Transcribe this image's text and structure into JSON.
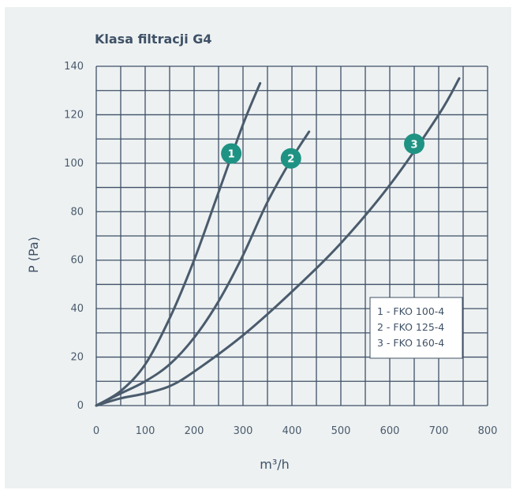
{
  "chart_data": {
    "type": "line",
    "title": "Klasa filtracji G4",
    "xlabel": "m³/h",
    "ylabel": "P (Pa)",
    "xlim": [
      0,
      800
    ],
    "ylim": [
      0,
      140
    ],
    "x_ticks": [
      "0",
      "100",
      "200",
      "300",
      "400",
      "500",
      "600",
      "700",
      "800"
    ],
    "y_ticks": [
      "0",
      "20",
      "40",
      "60",
      "80",
      "100",
      "120",
      "140"
    ],
    "grid": true,
    "colors": {
      "line": "#4a5b6c",
      "grid": "#3f5166",
      "marker": "#1f9383"
    },
    "series": [
      {
        "marker_label": "1",
        "marker_at": [
          276,
          104
        ],
        "points": [
          [
            0,
            0
          ],
          [
            50,
            6
          ],
          [
            100,
            17
          ],
          [
            150,
            36
          ],
          [
            200,
            60
          ],
          [
            250,
            88
          ],
          [
            300,
            116
          ],
          [
            335,
            133
          ]
        ]
      },
      {
        "marker_label": "2",
        "marker_at": [
          398,
          102
        ],
        "points": [
          [
            0,
            0
          ],
          [
            50,
            5
          ],
          [
            100,
            10
          ],
          [
            150,
            17
          ],
          [
            200,
            28
          ],
          [
            250,
            43
          ],
          [
            300,
            62
          ],
          [
            350,
            84
          ],
          [
            400,
            102
          ],
          [
            435,
            113
          ]
        ]
      },
      {
        "marker_label": "3",
        "marker_at": [
          650,
          108
        ],
        "points": [
          [
            0,
            0
          ],
          [
            50,
            3
          ],
          [
            100,
            5
          ],
          [
            150,
            8
          ],
          [
            200,
            14
          ],
          [
            300,
            29
          ],
          [
            400,
            47
          ],
          [
            500,
            67
          ],
          [
            600,
            91
          ],
          [
            700,
            120
          ],
          [
            742,
            135
          ]
        ]
      }
    ],
    "legend": {
      "position": "lower-right",
      "entries": [
        "1 - FKO 100-4",
        "2 - FKO 125-4",
        "3 - FKO 160-4"
      ]
    }
  }
}
